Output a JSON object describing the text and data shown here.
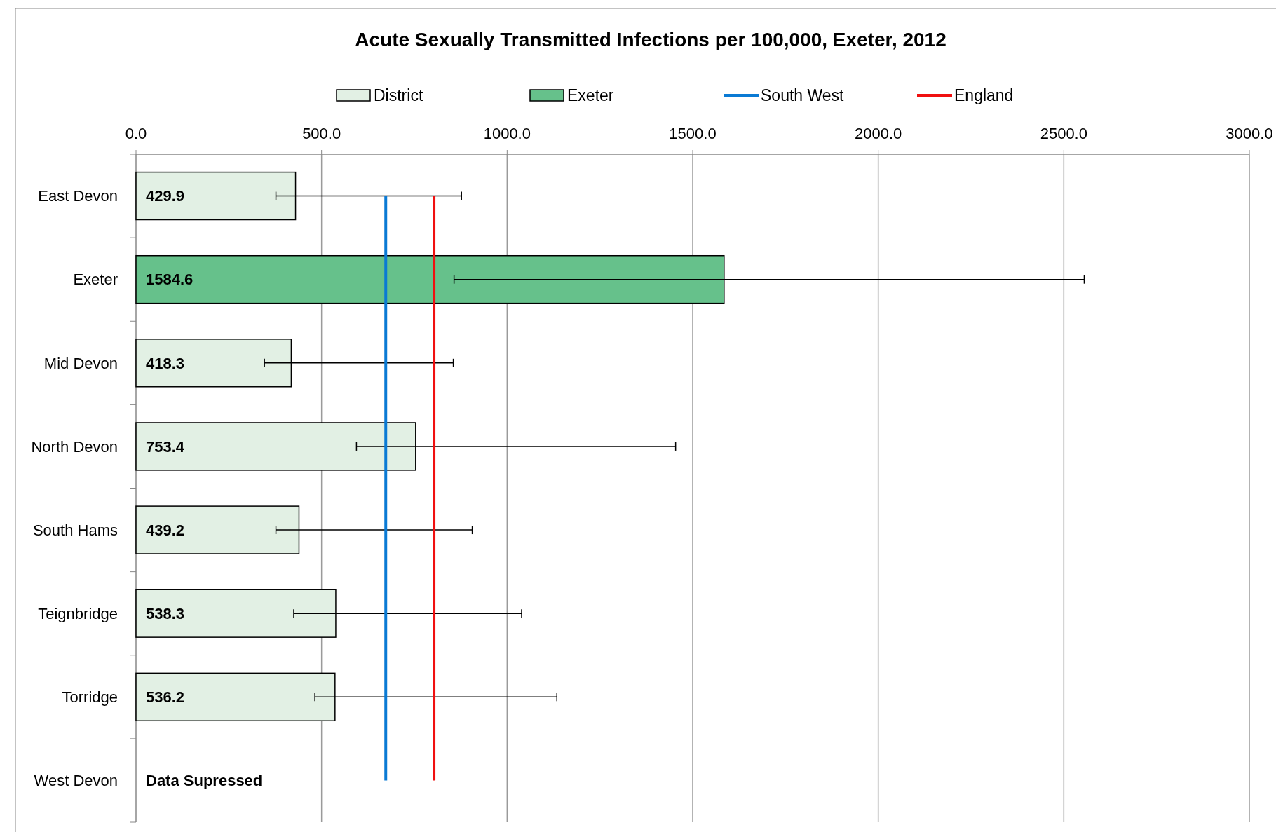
{
  "chart_data": {
    "type": "bar",
    "orientation": "horizontal",
    "title": "Acute Sexually Transmitted Infections per 100,000, Exeter, 2012",
    "categories": [
      "East Devon",
      "Exeter",
      "Mid Devon",
      "North Devon",
      "South Hams",
      "Teignbridge",
      "Torridge",
      "West Devon"
    ],
    "series": [
      {
        "name": "District",
        "color": "#e2f0e4",
        "values": [
          429.9,
          null,
          418.3,
          753.4,
          439.2,
          538.3,
          536.2,
          null
        ],
        "errors": [
          [
            377,
            877
          ],
          null,
          [
            346,
            855
          ],
          [
            594,
            1454
          ],
          [
            377,
            906
          ],
          [
            425,
            1039
          ],
          [
            482,
            1134
          ],
          null
        ]
      },
      {
        "name": "Exeter",
        "color": "#66c18b",
        "values": [
          null,
          1584.6,
          null,
          null,
          null,
          null,
          null,
          null
        ],
        "errors": [
          null,
          [
            857,
            2555
          ],
          null,
          null,
          null,
          null,
          null,
          null
        ]
      }
    ],
    "data_labels": true,
    "xlim": [
      0,
      3000
    ],
    "xticks": [
      {
        "value": 0,
        "label": "0.0"
      },
      {
        "value": 500,
        "label": "500.0"
      },
      {
        "value": 1000,
        "label": "1000.0"
      },
      {
        "value": 1500,
        "label": "1500.0"
      },
      {
        "value": 2000,
        "label": "2000.0"
      },
      {
        "value": 2500,
        "label": "2500.0"
      },
      {
        "value": 3000,
        "label": "3000.0"
      }
    ],
    "ref_lines": [
      {
        "axis": "x",
        "value": 673,
        "label": "South West",
        "color": "#0a7ad4"
      },
      {
        "axis": "x",
        "value": 803,
        "label": "England",
        "color": "#f01010"
      }
    ],
    "annotations": [
      "Data Supressed"
    ],
    "grid": "x",
    "legend": "top"
  }
}
